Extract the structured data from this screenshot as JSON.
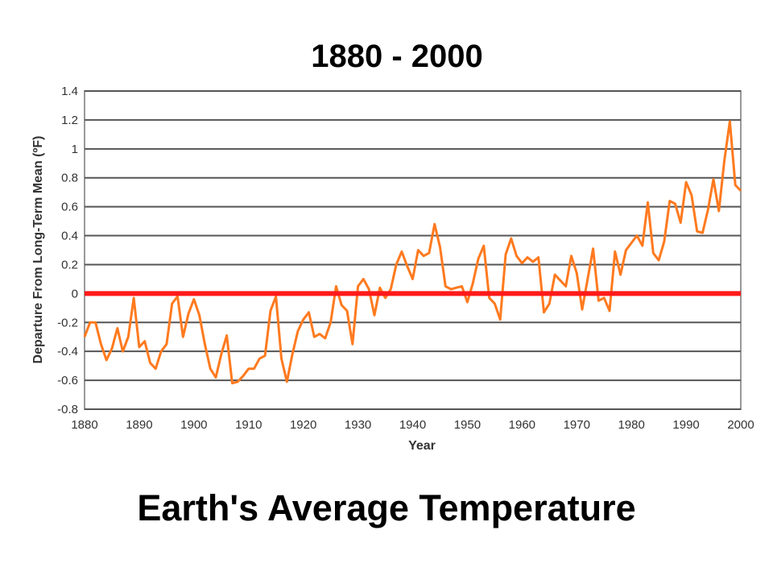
{
  "page": {
    "top_title": "1880 - 2000",
    "bottom_title": "Earth's Average Temperature"
  },
  "chart_data": {
    "type": "line",
    "xlabel": "Year",
    "ylabel": "Departure From Long-Term Mean (ºF)",
    "xlim": [
      1880,
      2000
    ],
    "ylim": [
      -0.8,
      1.4
    ],
    "xticks": [
      "1880",
      "1890",
      "1900",
      "1910",
      "1920",
      "1930",
      "1940",
      "1950",
      "1960",
      "1970",
      "1980",
      "1990",
      "2000"
    ],
    "yticks": [
      "1.4",
      "1.2",
      "1",
      "0.8",
      "0.6",
      "0.4",
      "0.2",
      "0",
      "-0.2",
      "-0.4",
      "-0.6",
      "-0.8"
    ],
    "ytick_values": [
      1.4,
      1.2,
      1.0,
      0.8,
      0.6,
      0.4,
      0.2,
      0,
      -0.2,
      -0.4,
      -0.6,
      -0.8
    ],
    "grid": true,
    "reference_line": {
      "value": 0,
      "color": "#ff1a1a"
    },
    "series": [
      {
        "color": "#ff7a1f",
        "x": [
          1880,
          1881,
          1882,
          1883,
          1884,
          1885,
          1886,
          1887,
          1888,
          1889,
          1890,
          1891,
          1892,
          1893,
          1894,
          1895,
          1896,
          1897,
          1898,
          1899,
          1900,
          1901,
          1902,
          1903,
          1904,
          1905,
          1906,
          1907,
          1908,
          1909,
          1910,
          1911,
          1912,
          1913,
          1914,
          1915,
          1916,
          1917,
          1918,
          1919,
          1920,
          1921,
          1922,
          1923,
          1924,
          1925,
          1926,
          1927,
          1928,
          1929,
          1930,
          1931,
          1932,
          1933,
          1934,
          1935,
          1936,
          1937,
          1938,
          1939,
          1940,
          1941,
          1942,
          1943,
          1944,
          1945,
          1946,
          1947,
          1948,
          1949,
          1950,
          1951,
          1952,
          1953,
          1954,
          1955,
          1956,
          1957,
          1958,
          1959,
          1960,
          1961,
          1962,
          1963,
          1964,
          1965,
          1966,
          1967,
          1968,
          1969,
          1970,
          1971,
          1972,
          1973,
          1974,
          1975,
          1976,
          1977,
          1978,
          1979,
          1980,
          1981,
          1982,
          1983,
          1984,
          1985,
          1986,
          1987,
          1988,
          1989,
          1990,
          1991,
          1992,
          1993,
          1994,
          1995,
          1996,
          1997,
          1998,
          1999,
          2000
        ],
        "y": [
          -0.3,
          -0.2,
          -0.2,
          -0.35,
          -0.46,
          -0.38,
          -0.24,
          -0.4,
          -0.3,
          -0.03,
          -0.37,
          -0.33,
          -0.48,
          -0.52,
          -0.4,
          -0.35,
          -0.07,
          -0.02,
          -0.3,
          -0.14,
          -0.04,
          -0.15,
          -0.35,
          -0.52,
          -0.58,
          -0.42,
          -0.29,
          -0.62,
          -0.61,
          -0.57,
          -0.52,
          -0.52,
          -0.45,
          -0.43,
          -0.12,
          -0.02,
          -0.45,
          -0.61,
          -0.42,
          -0.26,
          -0.18,
          -0.13,
          -0.3,
          -0.28,
          -0.31,
          -0.2,
          0.05,
          -0.08,
          -0.12,
          -0.35,
          0.05,
          0.1,
          0.03,
          -0.15,
          0.04,
          -0.03,
          0.03,
          0.2,
          0.29,
          0.19,
          0.1,
          0.3,
          0.26,
          0.28,
          0.48,
          0.32,
          0.05,
          0.03,
          0.04,
          0.05,
          -0.06,
          0.07,
          0.24,
          0.33,
          -0.03,
          -0.07,
          -0.18,
          0.27,
          0.38,
          0.26,
          0.21,
          0.25,
          0.22,
          0.25,
          -0.13,
          -0.07,
          0.13,
          0.09,
          0.05,
          0.26,
          0.14,
          -0.11,
          0.1,
          0.31,
          -0.05,
          -0.03,
          -0.12,
          0.29,
          0.13,
          0.3,
          0.35,
          0.4,
          0.33,
          0.63,
          0.28,
          0.23,
          0.36,
          0.64,
          0.62,
          0.49,
          0.77,
          0.68,
          0.43,
          0.42,
          0.58,
          0.79,
          0.57,
          0.92,
          1.19,
          0.75,
          0.71
        ]
      }
    ]
  }
}
